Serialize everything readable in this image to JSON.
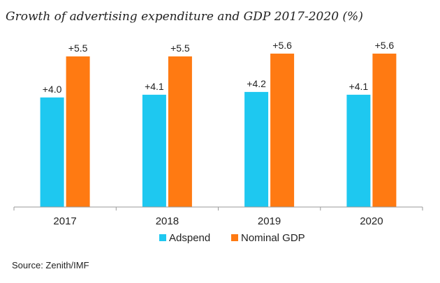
{
  "chart_data": {
    "type": "bar",
    "title": "Growth of advertising expenditure and GDP 2017-2020 (%)",
    "categories": [
      "2017",
      "2018",
      "2019",
      "2020"
    ],
    "series": [
      {
        "name": "Adspend",
        "values": [
          4.0,
          4.1,
          4.2,
          4.1
        ],
        "labels": [
          "+4.0",
          "+4.1",
          "+4.2",
          "+4.1"
        ],
        "color": "#1ec8f0"
      },
      {
        "name": "Nominal GDP",
        "values": [
          5.5,
          5.5,
          5.6,
          5.6
        ],
        "labels": [
          "+5.5",
          "+5.5",
          "+5.6",
          "+5.6"
        ],
        "color": "#ff7a12"
      }
    ],
    "ylim": [
      0,
      6
    ],
    "grid": false,
    "legend": "bottom"
  },
  "source": "Source: Zenith/IMF"
}
